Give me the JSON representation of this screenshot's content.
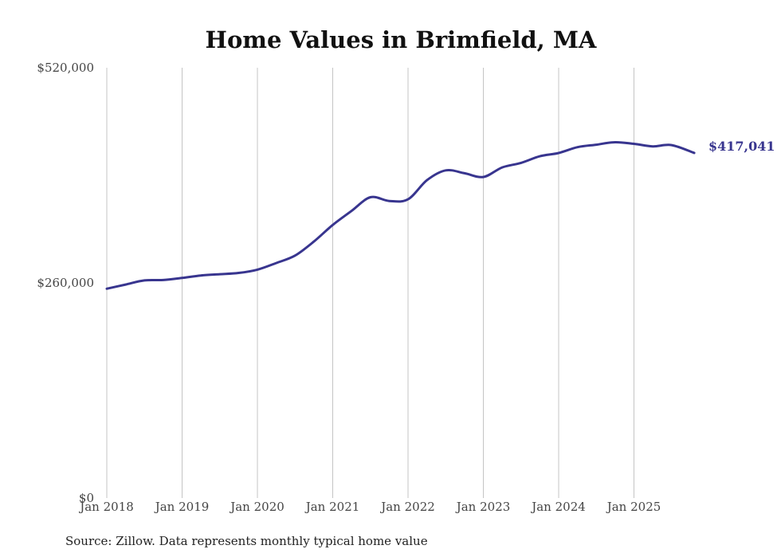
{
  "chart_data": {
    "type": "line",
    "title": "Home Values in Brimfield, MA",
    "xlabel": "",
    "ylabel": "",
    "ylim": [
      0,
      520000
    ],
    "y_ticks": [
      {
        "value": 0,
        "label": "$0"
      },
      {
        "value": 260000,
        "label": "$260,000"
      },
      {
        "value": 520000,
        "label": "$520,000"
      }
    ],
    "x_ticks": [
      {
        "value": 2018.0,
        "label": "Jan 2018"
      },
      {
        "value": 2019.0,
        "label": "Jan 2019"
      },
      {
        "value": 2020.0,
        "label": "Jan 2020"
      },
      {
        "value": 2021.0,
        "label": "Jan 2021"
      },
      {
        "value": 2022.0,
        "label": "Jan 2022"
      },
      {
        "value": 2023.0,
        "label": "Jan 2023"
      },
      {
        "value": 2024.0,
        "label": "Jan 2024"
      },
      {
        "value": 2025.0,
        "label": "Jan 2025"
      }
    ],
    "xlim": [
      2018.0,
      2025.8
    ],
    "grid": "vertical",
    "series": [
      {
        "name": "Typical home value",
        "color": "#38358f",
        "x": [
          2018.0,
          2018.25,
          2018.5,
          2018.75,
          2019.0,
          2019.25,
          2019.5,
          2019.75,
          2020.0,
          2020.25,
          2020.5,
          2020.75,
          2021.0,
          2021.25,
          2021.5,
          2021.75,
          2022.0,
          2022.25,
          2022.5,
          2022.75,
          2023.0,
          2023.25,
          2023.5,
          2023.75,
          2024.0,
          2024.25,
          2024.5,
          2024.75,
          2025.0,
          2025.25,
          2025.5,
          2025.8
        ],
        "values": [
          253000,
          258000,
          263000,
          263500,
          266000,
          269000,
          270500,
          272000,
          276000,
          284000,
          293000,
          310000,
          330000,
          347000,
          363500,
          359000,
          361000,
          384000,
          396000,
          392500,
          388000,
          399500,
          405000,
          413000,
          417000,
          424000,
          427000,
          430000,
          428000,
          425000,
          426500,
          417041
        ]
      }
    ],
    "end_label": "$417,041",
    "source": "Source: Zillow. Data represents monthly typical home value"
  }
}
